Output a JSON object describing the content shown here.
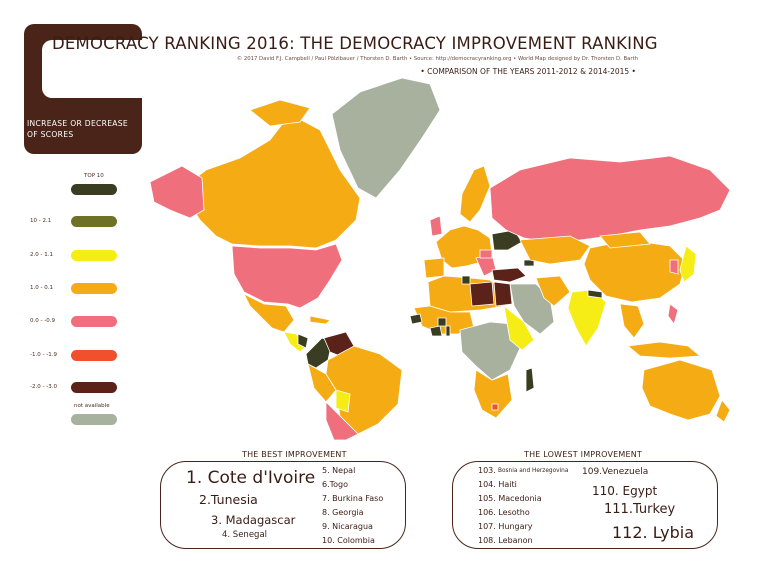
{
  "title": "DEMOCRACY RANKING 2016: THE DEMOCRACY IMPROVEMENT RANKING",
  "credits": "© 2017 David F.J. Campbell / Paul Pölzlbauer / Thorsten D. Barth • Source: http://democracyranking.org • World Map designed by Dr. Thorsten D. Barth",
  "comparison": "• COMPARISON OF THE YEARS 2011-2012 & 2014-2015 •",
  "legend": {
    "title": "INCREASE OR DECREASE OF SCORES",
    "items": [
      {
        "label": "TOP 10",
        "color": "#3b3d22"
      },
      {
        "label": "10 - 2.1",
        "color": "#6e7126"
      },
      {
        "label": "2.0 - 1.1",
        "color": "#f6ec16"
      },
      {
        "label": "1.0 - 0.1",
        "color": "#f5ac14"
      },
      {
        "label": "0.0 - -0.9",
        "color": "#ef6f7c"
      },
      {
        "label": "-1.0 - -1.9",
        "color": "#f0502b"
      },
      {
        "label": "-2.0 - -3.0",
        "color": "#5a2218"
      },
      {
        "label": "not available",
        "color": "#a8b09e"
      }
    ]
  },
  "best": {
    "heading": "THE BEST IMPROVEMENT",
    "items": [
      "1. Cote d'Ivoire",
      "2.Tunesia",
      "3. Madagascar",
      "4. Senegal",
      "5. Nepal",
      "6.Togo",
      "7. Burkina Faso",
      "8. Georgia",
      "9. Nicaragua",
      "10. Colombia"
    ]
  },
  "lowest": {
    "heading": "THE LOWEST IMPROVEMENT",
    "items": [
      "103.",
      "Bosnia and Herzegovina",
      "104. Haiti",
      "105. Macedonia",
      "106. Lesotho",
      "107. Hungary",
      "108. Lebanon",
      "109.Venezuela",
      "110.  Egypt",
      "111.Turkey",
      "112. Lybia"
    ]
  }
}
